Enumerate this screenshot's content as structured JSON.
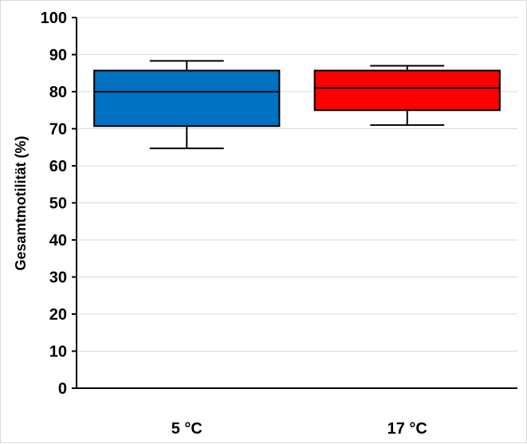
{
  "chart_data": {
    "type": "boxplot",
    "title": "",
    "xlabel": "",
    "ylabel": "Gesamtmotilität (%)",
    "ylim": [
      0,
      100
    ],
    "yticks": [
      0,
      10,
      20,
      30,
      40,
      50,
      60,
      70,
      80,
      90,
      100
    ],
    "grid": true,
    "categories": [
      "5 °C",
      "17 °C"
    ],
    "series": [
      {
        "category": "5 °C",
        "whisker_low": 64.7,
        "q1": 70.7,
        "median": 80.0,
        "q3": 85.7,
        "whisker_high": 88.3,
        "color": "#0070c0"
      },
      {
        "category": "17 °C",
        "whisker_low": 71.0,
        "q1": 75.0,
        "median": 81.0,
        "q3": 85.7,
        "whisker_high": 87.0,
        "color": "#ff0000"
      }
    ]
  }
}
